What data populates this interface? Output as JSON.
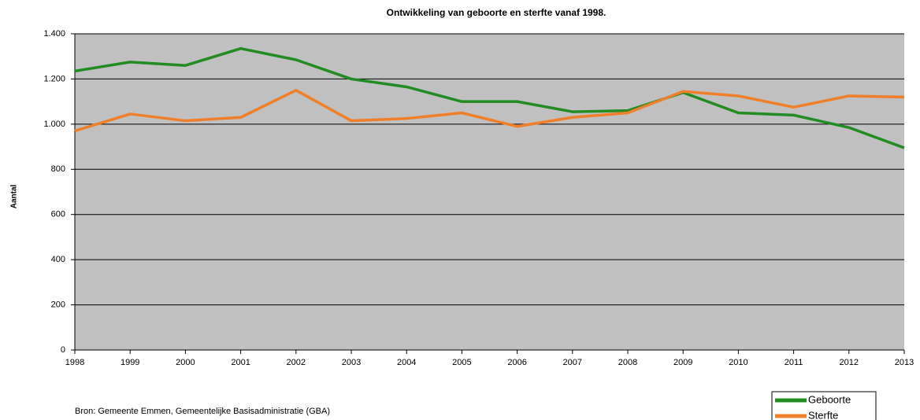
{
  "chart_data": {
    "type": "line",
    "title": "Ontwikkeling van geboorte en sterfte vanaf 1998.",
    "y_label": "Aantal",
    "source": "Bron: Gemeente Emmen, Gemeentelijke Basisadministratie (GBA)",
    "categories": [
      "1998",
      "1999",
      "2000",
      "2001",
      "2002",
      "2003",
      "2004",
      "2005",
      "2006",
      "2007",
      "2008",
      "2009",
      "2010",
      "2011",
      "2012",
      "2013"
    ],
    "series": [
      {
        "name": "Geboorte",
        "color": "#228b22",
        "values": [
          1235,
          1275,
          1260,
          1335,
          1285,
          1200,
          1165,
          1100,
          1100,
          1055,
          1060,
          1140,
          1050,
          1040,
          985,
          895
        ]
      },
      {
        "name": "Sterfte",
        "color": "#f07f2a",
        "values": [
          970,
          1045,
          1015,
          1030,
          1150,
          1015,
          1025,
          1050,
          990,
          1030,
          1050,
          1145,
          1125,
          1075,
          1125,
          1120
        ]
      }
    ],
    "ylim": [
      0,
      1400
    ],
    "yticks": [
      0,
      200,
      400,
      600,
      800,
      {
        "value": 1000,
        "label": "1.000"
      },
      {
        "value": 1200,
        "label": "1.200"
      },
      {
        "value": 1400,
        "label": "1.400"
      }
    ],
    "grid": true,
    "legend": "bottom-right",
    "background": "#c0c0c0"
  }
}
